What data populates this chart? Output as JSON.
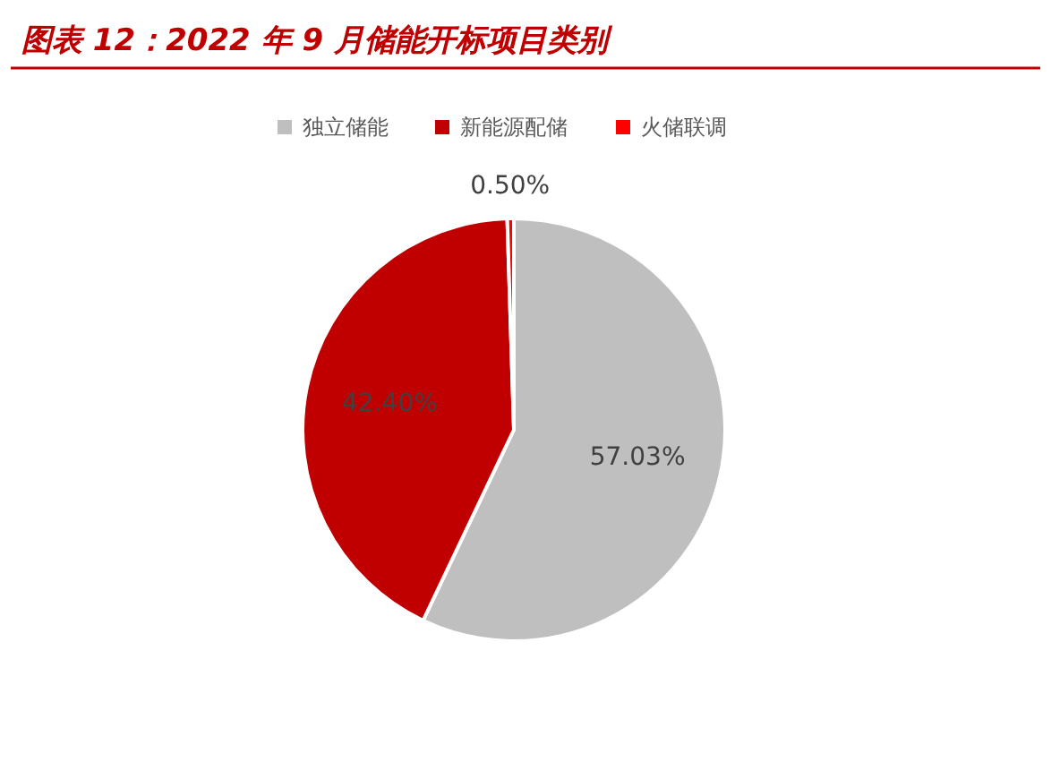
{
  "chart_data": {
    "type": "pie",
    "title": "图表 12：2022 年 9 月储能开标项目类别",
    "categories": [
      "独立储能",
      "新能源配储",
      "火储联调"
    ],
    "values": [
      57.03,
      42.4,
      0.5
    ],
    "colors": [
      "#bfbfbf",
      "#c00000",
      "#ff0000"
    ],
    "value_labels": [
      "57.03%",
      "42.40%",
      "0.50%"
    ],
    "legend": "top"
  }
}
